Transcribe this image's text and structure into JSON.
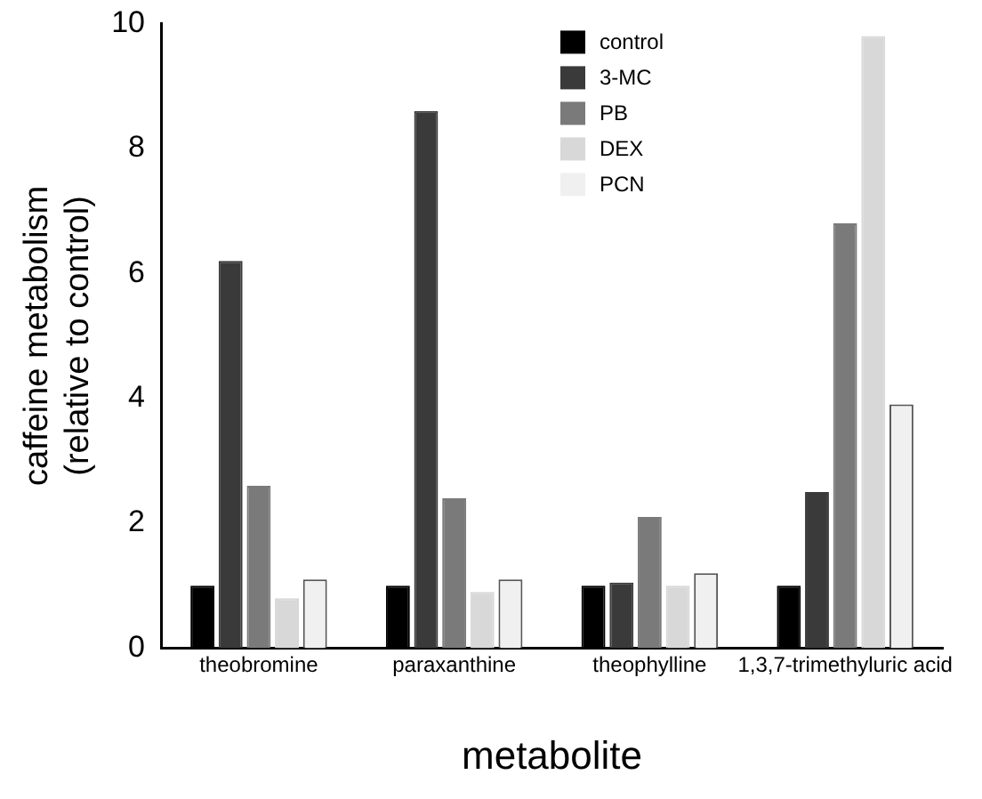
{
  "chart_data": {
    "type": "bar",
    "xlabel": "metabolite",
    "ylabel": "caffeine metabolism\n(relative to control)",
    "categories": [
      "theobromine",
      "paraxanthine",
      "theophylline",
      "1,3,7-trimethyluric acid"
    ],
    "series": [
      {
        "name": "control",
        "color": "#000000",
        "values": [
          1.0,
          1.0,
          1.0,
          1.0
        ]
      },
      {
        "name": "3-MC",
        "color": "#3a3a3a",
        "values": [
          6.2,
          8.6,
          1.05,
          2.5
        ]
      },
      {
        "name": "PB",
        "color": "#7a7a7a",
        "values": [
          2.6,
          2.4,
          2.1,
          6.8
        ]
      },
      {
        "name": "DEX",
        "color": "#d8d8d8",
        "values": [
          0.8,
          0.9,
          1.0,
          9.8
        ]
      },
      {
        "name": "PCN",
        "color": "#f0f0f0",
        "values": [
          1.1,
          1.1,
          1.2,
          3.9
        ]
      }
    ],
    "ylim": [
      0,
      10
    ],
    "yticks": [
      0,
      2,
      4,
      6,
      8,
      10
    ],
    "grid": false,
    "legend": "top right"
  }
}
